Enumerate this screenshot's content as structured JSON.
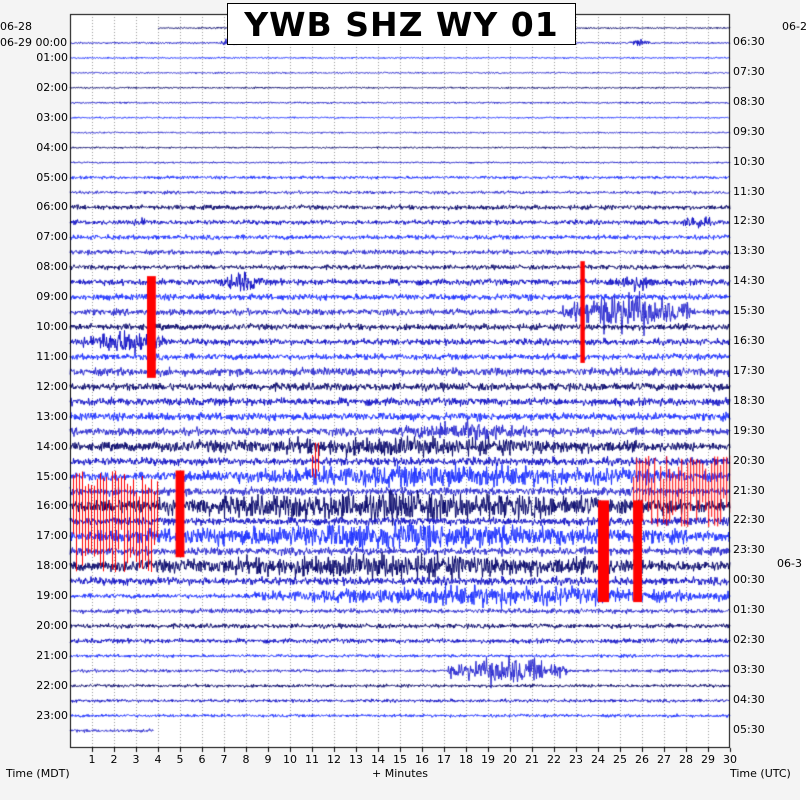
{
  "title": "YWB SHZ WY 01",
  "date_labels": {
    "left_top": "06-28",
    "left_second": "06-29 00:00",
    "right_top": "06-2",
    "right_mid": "06-3"
  },
  "axis": {
    "left_title": "Time (MDT)",
    "bottom_title": "+ Minutes",
    "right_title": "Time (UTC)"
  },
  "chart_data": {
    "type": "helicorder",
    "title": "YWB SHZ WY 01",
    "x_label": "+ Minutes",
    "x_range": [
      0,
      30
    ],
    "x_ticks": [
      "1",
      "2",
      "3",
      "4",
      "5",
      "6",
      "7",
      "8",
      "9",
      "10",
      "11",
      "12",
      "13",
      "14",
      "15",
      "16",
      "17",
      "18",
      "19",
      "20",
      "21",
      "22",
      "23",
      "24",
      "25",
      "26",
      "27",
      "28",
      "29",
      "30"
    ],
    "left_label": "Time (MDT)",
    "right_label": "Time (UTC)",
    "left_hour_labels": [
      "01:00",
      "02:00",
      "03:00",
      "04:00",
      "05:00",
      "06:00",
      "07:00",
      "08:00",
      "09:00",
      "10:00",
      "11:00",
      "12:00",
      "13:00",
      "14:00",
      "15:00",
      "16:00",
      "17:00",
      "18:00",
      "19:00",
      "20:00",
      "21:00",
      "22:00",
      "23:00"
    ],
    "right_hour_labels": [
      "06:30",
      "07:30",
      "08:30",
      "09:30",
      "10:30",
      "11:30",
      "12:30",
      "13:30",
      "14:30",
      "15:30",
      "16:30",
      "17:30",
      "18:30",
      "19:30",
      "20:30",
      "21:30",
      "22:30",
      "23:30",
      "00:30",
      "01:30",
      "02:30",
      "03:30",
      "04:30",
      "05:30"
    ],
    "trace_colors": [
      "#0a0a6e",
      "#1414c8",
      "#1e32ff",
      "#2d2dd2"
    ],
    "clip_color": "#ff0000",
    "noise_envelope_by_row": [
      1,
      1,
      1,
      1,
      1,
      1,
      1,
      1,
      1,
      1,
      1,
      1,
      1,
      1,
      1,
      1,
      1,
      1,
      1,
      1,
      1,
      1,
      1,
      1,
      1,
      1,
      1,
      1,
      1,
      1,
      2,
      2,
      2,
      2,
      2,
      2,
      2,
      3,
      3,
      3,
      3,
      3,
      3,
      3,
      3,
      3,
      3,
      3,
      3,
      3,
      3,
      3,
      4,
      4,
      4,
      4,
      4,
      4,
      4,
      4,
      4,
      4,
      4,
      4,
      4,
      4,
      4,
      4,
      4,
      4,
      5,
      5,
      5,
      5,
      5,
      5,
      5,
      5,
      5,
      5,
      5,
      5,
      5,
      5,
      5,
      5,
      5,
      5,
      5,
      5,
      5,
      5,
      5,
      5,
      5,
      5,
      5,
      5,
      5,
      5,
      5,
      5,
      5,
      5,
      5,
      5,
      5,
      5,
      5,
      5,
      5,
      5,
      5,
      5,
      5,
      5,
      5,
      5,
      5,
      5,
      3,
      3,
      3,
      3,
      3,
      3,
      3,
      3,
      3,
      3,
      2,
      2,
      2,
      2,
      2,
      2,
      2,
      2,
      2,
      2,
      2,
      2,
      2,
      2,
      2,
      2,
      2,
      2,
      2,
      2,
      2,
      2
    ],
    "events": [
      {
        "row": 1,
        "start_min": 6.8,
        "end_min": 7.6,
        "amp": 6
      },
      {
        "row": 1,
        "start_min": 25.4,
        "end_min": 26.4,
        "amp": 6
      },
      {
        "row": 13,
        "start_min": 2.8,
        "end_min": 3.8,
        "amp": 8
      },
      {
        "row": 13,
        "start_min": 27.8,
        "end_min": 29.2,
        "amp": 12
      },
      {
        "row": 17,
        "start_min": 6.8,
        "end_min": 8.8,
        "amp": 16
      },
      {
        "row": 17,
        "start_min": 24.4,
        "end_min": 26.8,
        "amp": 14
      },
      {
        "row": 19,
        "start_min": 22.4,
        "end_min": 28.2,
        "amp": 30
      },
      {
        "row": 21,
        "start_min": 0.6,
        "end_min": 4.4,
        "amp": 20
      },
      {
        "row": 27,
        "start_min": 14.6,
        "end_min": 21.6,
        "amp": 16
      },
      {
        "row": 28,
        "start_min": 0.0,
        "end_min": 30.0,
        "amp": 14
      },
      {
        "row": 30,
        "start_min": 4.0,
        "end_min": 30.0,
        "amp": 18
      },
      {
        "row": 32,
        "start_min": 0.0,
        "end_min": 30.0,
        "amp": 22
      },
      {
        "row": 34,
        "start_min": 0.0,
        "end_min": 30.0,
        "amp": 20
      },
      {
        "row": 36,
        "start_min": 0.0,
        "end_min": 30.0,
        "amp": 18
      },
      {
        "row": 38,
        "start_min": 8.0,
        "end_min": 30.0,
        "amp": 16
      },
      {
        "row": 43,
        "start_min": 17.2,
        "end_min": 22.6,
        "amp": 22
      }
    ],
    "clipped_segments": [
      {
        "row_start": 17,
        "row_end": 23,
        "start_min": 3.5,
        "end_min": 3.9,
        "style": "block"
      },
      {
        "row_start": 16,
        "row_end": 22,
        "start_min": 23.2,
        "end_min": 23.4,
        "style": "block"
      },
      {
        "row_start": 28,
        "row_end": 30,
        "start_min": 11.0,
        "end_min": 11.4,
        "style": "spikes"
      },
      {
        "row_start": 30,
        "row_end": 36,
        "start_min": 0.0,
        "end_min": 4.0,
        "style": "spikes"
      },
      {
        "row_start": 30,
        "row_end": 35,
        "start_min": 4.8,
        "end_min": 5.2,
        "style": "block"
      },
      {
        "row_start": 29,
        "row_end": 33,
        "start_min": 25.6,
        "end_min": 30.0,
        "style": "spikes"
      },
      {
        "row_start": 32,
        "row_end": 38,
        "start_min": 24.0,
        "end_min": 24.5,
        "style": "block"
      },
      {
        "row_start": 32,
        "row_end": 38,
        "start_min": 25.6,
        "end_min": 26.0,
        "style": "block"
      }
    ]
  }
}
